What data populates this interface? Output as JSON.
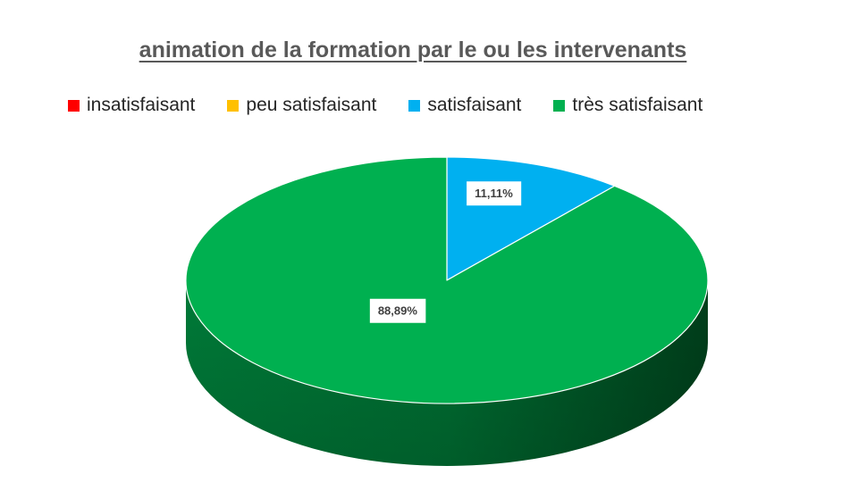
{
  "chart_data": {
    "type": "pie",
    "title": "animation de la formation par le ou les intervenants",
    "categories": [
      "insatisfaisant",
      "peu satisfaisant",
      "satisfaisant",
      "très satisfaisant"
    ],
    "values": [
      0,
      0,
      11.11,
      88.89
    ],
    "data_labels": [
      "",
      "",
      "11,11%",
      "88,89%"
    ],
    "colors": [
      "#ff0000",
      "#ffc000",
      "#00b0f0",
      "#00b050"
    ],
    "legend": "top",
    "style": "3d"
  }
}
